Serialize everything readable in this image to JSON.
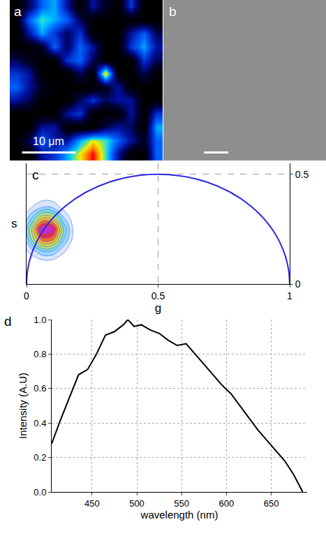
{
  "chart_data": [
    {
      "panel": "a",
      "type": "image",
      "tick_labels": false,
      "xlim": [
        0,
        28.5
      ],
      "ylim": [
        0,
        28
      ],
      "zlim": [
        0,
        1
      ],
      "cells": [
        [
          0,
          0.2,
          0.5,
          0.6,
          0.3,
          0,
          0.3,
          0.1,
          0,
          0.4,
          0,
          0
        ],
        [
          0,
          0.5,
          0.7,
          0.6,
          0.5,
          0.2,
          0,
          0,
          0,
          0,
          0,
          0
        ],
        [
          0,
          0.3,
          0.6,
          0.4,
          0.2,
          0.4,
          0,
          0,
          0,
          0.3,
          0.5,
          0.2
        ],
        [
          0,
          0,
          0.1,
          0.5,
          0.2,
          0.5,
          0.3,
          0,
          0,
          0.4,
          0.6,
          0.3
        ],
        [
          0.2,
          0.1,
          0,
          0,
          0.4,
          0.5,
          0.2,
          0,
          0,
          0,
          0.4,
          0.2
        ],
        [
          0.4,
          0.3,
          0,
          0,
          0,
          0.2,
          0,
          0.9,
          0,
          0,
          0.2,
          0
        ],
        [
          0.5,
          0.3,
          0.1,
          0,
          0,
          0,
          0,
          0.1,
          0.3,
          0,
          0,
          0
        ],
        [
          0.3,
          0.2,
          0,
          0,
          0,
          0.2,
          0.4,
          0.2,
          0.3,
          0.3,
          0,
          0
        ],
        [
          0,
          0,
          0,
          0,
          0.3,
          0.4,
          0,
          0,
          0,
          0.3,
          0,
          0.4
        ],
        [
          0,
          0,
          0.3,
          0.3,
          0,
          0,
          0,
          0.2,
          0.3,
          0.2,
          0,
          0.6
        ],
        [
          0,
          0.2,
          0.5,
          0.3,
          0.3,
          0.6,
          0.8,
          0.7,
          0.5,
          0.3,
          0.1,
          0.5
        ],
        [
          0,
          0,
          0.3,
          0.4,
          0.6,
          0.8,
          1,
          0.7,
          0.3,
          0,
          0,
          0.5
        ]
      ],
      "scale_bar": {
        "length": 10,
        "label": "10 μm"
      }
    },
    {
      "panel": "b",
      "type": "image",
      "tick_labels": false,
      "xlim": [
        0,
        67
      ],
      "ylim": [
        0,
        66
      ],
      "scale_bar": {
        "length": 10
      }
    },
    {
      "panel": "c",
      "type": "contour",
      "x_label": "g",
      "y_label": "s",
      "x": [
        -0.06,
        -0.02,
        0.02,
        0.06,
        0.1,
        0.14,
        0.18,
        0.22
      ],
      "y": [
        0.1,
        0.15,
        0.2,
        0.25,
        0.3,
        0.35,
        0.4
      ],
      "cells": [
        [
          0,
          0,
          2,
          5,
          5,
          2,
          0,
          0
        ],
        [
          0,
          3,
          15,
          30,
          28,
          12,
          2,
          0
        ],
        [
          1,
          8,
          40,
          75,
          70,
          30,
          5,
          0
        ],
        [
          1,
          10,
          50,
          100,
          95,
          40,
          6,
          0
        ],
        [
          0,
          6,
          30,
          60,
          55,
          22,
          3,
          0
        ],
        [
          0,
          2,
          10,
          20,
          18,
          6,
          1,
          0
        ],
        [
          0,
          0,
          1,
          3,
          3,
          1,
          0,
          0
        ]
      ],
      "semicircle": {
        "center": [
          0.5,
          0
        ],
        "radius": 0.5,
        "color": "#2a2ae0"
      },
      "xlim": [
        0,
        1
      ],
      "xticks": [
        0,
        0.5,
        1
      ],
      "ylim": [
        0,
        0.55
      ],
      "yticks": [
        0,
        0.5
      ],
      "grid": true
    },
    {
      "panel": "d",
      "type": "line",
      "x_label": "wavelength (nm)",
      "y_label": "Intensity (A.U)",
      "color": "#000000",
      "x": [
        405,
        415,
        425,
        435,
        445,
        455,
        465,
        475,
        485,
        490,
        497,
        505,
        515,
        525,
        535,
        545,
        555,
        565,
        575,
        585,
        595,
        605,
        615,
        625,
        635,
        645,
        655,
        665,
        675,
        685
      ],
      "values": [
        0.28,
        0.42,
        0.55,
        0.68,
        0.71,
        0.8,
        0.91,
        0.93,
        0.97,
        1.0,
        0.96,
        0.97,
        0.94,
        0.92,
        0.88,
        0.85,
        0.86,
        0.8,
        0.74,
        0.68,
        0.62,
        0.57,
        0.5,
        0.43,
        0.36,
        0.3,
        0.24,
        0.18,
        0.1,
        0.0
      ],
      "xlim": [
        405,
        690
      ],
      "xticks": [
        450,
        500,
        550,
        600,
        650
      ],
      "ylim": [
        0,
        1
      ],
      "yticks": [
        {
          "value": 0,
          "label": "0.0"
        },
        0.2,
        0.4,
        0.6,
        0.8,
        {
          "value": 1,
          "label": "1.0"
        }
      ],
      "grid": true
    }
  ]
}
